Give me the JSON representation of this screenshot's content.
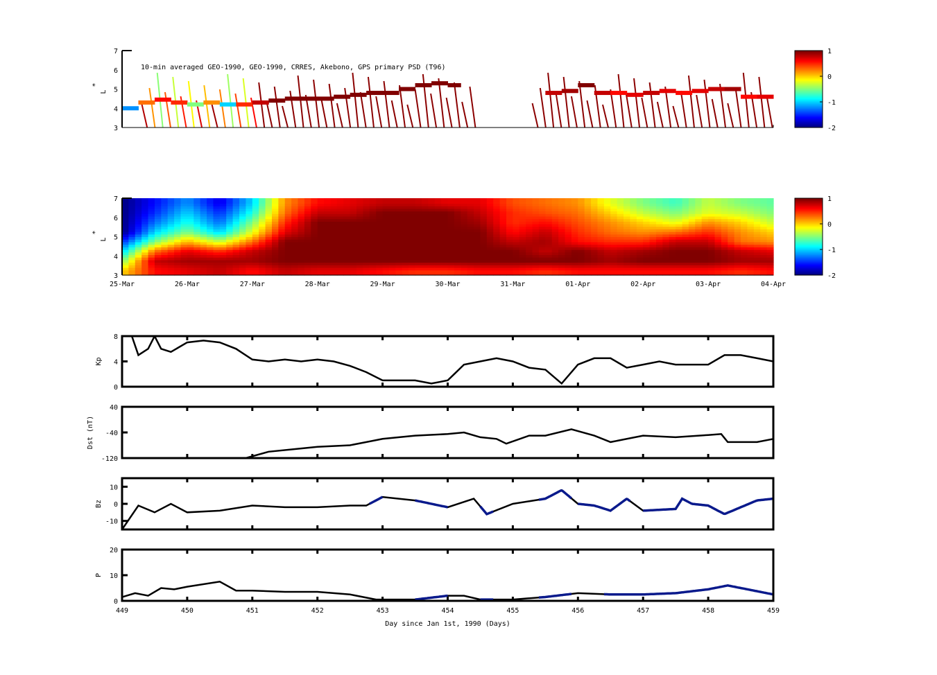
{
  "chart_data": [
    {
      "id": "psd-obs",
      "type": "heatmap",
      "title": "10-min averaged GEO-1990, GEO-1990, CRRES, Akebono, GPS  primary PSD (T96)",
      "ylabel": "L*",
      "ylabel_main": "L",
      "ylabel_star": "*",
      "ylim": [
        3,
        7
      ],
      "yticks": [
        "3",
        "4",
        "5",
        "6",
        "7"
      ],
      "xlim": [
        449,
        459
      ],
      "track": {
        "day": [
          449,
          449.25,
          449.5,
          449.75,
          450,
          450.25,
          450.5,
          450.75,
          451,
          451.25,
          451.5,
          451.75,
          452,
          452.25,
          452.5,
          452.75,
          453,
          453.25,
          453.5,
          453.75,
          454,
          454.2,
          455.5,
          455.75,
          456,
          456.25,
          456.5,
          456.75,
          457,
          457.25,
          457.5,
          457.75,
          458,
          458.25,
          458.5,
          458.75,
          459
        ],
        "L": [
          4.0,
          4.3,
          4.45,
          4.3,
          4.2,
          4.3,
          4.2,
          4.2,
          4.3,
          4.4,
          4.5,
          4.5,
          4.5,
          4.6,
          4.7,
          4.8,
          4.8,
          5.0,
          5.2,
          5.3,
          5.2,
          5.2,
          4.8,
          4.9,
          5.2,
          4.8,
          4.8,
          4.7,
          4.8,
          4.9,
          4.8,
          4.9,
          5.0,
          5.0,
          4.6,
          4.6,
          4.7
        ],
        "value": [
          -1.2,
          0.3,
          0.6,
          0.5,
          -0.5,
          0.2,
          -1.0,
          0.5,
          0.8,
          1,
          1,
          1,
          1,
          1,
          1,
          1,
          1,
          1,
          1,
          1,
          1,
          1,
          0.8,
          0.9,
          1,
          0.8,
          0.6,
          0.7,
          0.8,
          0.7,
          0.6,
          0.7,
          0.8,
          0.9,
          0.6,
          0.7,
          0.6
        ]
      },
      "colorbar": {
        "ticks": [
          "1",
          "0",
          "-1",
          "-2"
        ],
        "range": [
          -2,
          1
        ]
      }
    },
    {
      "id": "psd-reanalysis",
      "type": "heatmap",
      "ylabel": "L*",
      "ylabel_main": "L",
      "ylabel_star": "*",
      "ylim": [
        3,
        7
      ],
      "yticks": [
        "3",
        "4",
        "5",
        "6",
        "7"
      ],
      "x_days": [
        449,
        449.5,
        450,
        450.5,
        451,
        451.5,
        452,
        452.5,
        453,
        453.5,
        454,
        454.5,
        455,
        455.5,
        456,
        456.5,
        457,
        457.5,
        458,
        458.5,
        459
      ],
      "L_levels": [
        3.25,
        3.75,
        4.25,
        4.75,
        5.25,
        5.75,
        6.25,
        6.75
      ],
      "values": [
        [
          0,
          0.6,
          0.7,
          0.8,
          0.6,
          0.8,
          0.7,
          0.7,
          0.6,
          0.5,
          0.5,
          0.6,
          0.6,
          0.5,
          0.6,
          0.6,
          0.6,
          0.6,
          0.6,
          0.5,
          0.6
        ],
        [
          -0.5,
          0.8,
          0.9,
          0.9,
          0.9,
          1,
          1,
          1,
          1,
          1,
          1,
          1,
          1,
          1,
          1,
          0.9,
          1,
          1,
          1,
          0.9,
          0.9
        ],
        [
          -1,
          0.3,
          0.7,
          0.5,
          0.8,
          1,
          1,
          1,
          1,
          1,
          1,
          1,
          1,
          0.8,
          1,
          0.8,
          0.9,
          1,
          1,
          0.8,
          0.7
        ],
        [
          -1.5,
          -0.5,
          0.1,
          -0.3,
          0.3,
          1,
          1,
          1,
          1,
          1,
          1,
          1,
          0.8,
          0.9,
          0.6,
          0.5,
          0.5,
          0.8,
          0.8,
          0.3,
          0.2
        ],
        [
          -2,
          -1,
          -0.5,
          -1,
          -0.2,
          0.7,
          1,
          1,
          1,
          1,
          1,
          1,
          0.6,
          0.8,
          0.5,
          0.3,
          0.2,
          0.3,
          0.5,
          0.2,
          0
        ],
        [
          -2,
          -1.3,
          -0.8,
          -1.3,
          -0.5,
          0.5,
          1,
          1,
          1,
          1,
          1,
          0.9,
          0.5,
          0.6,
          0.4,
          0.2,
          0,
          -0.2,
          0.2,
          0,
          -0.3
        ],
        [
          -2,
          -1.5,
          -1,
          -1.5,
          -0.8,
          0.3,
          0.8,
          0.8,
          1,
          1,
          1,
          0.8,
          0.5,
          0.4,
          0.3,
          0,
          -0.3,
          -0.5,
          -0.2,
          -0.3,
          -0.5
        ],
        [
          -2,
          -1.6,
          -1.2,
          -1.7,
          -1,
          0.2,
          0.6,
          0.7,
          0.8,
          0.8,
          0.7,
          0.7,
          0.4,
          0.3,
          0.2,
          -0.2,
          -0.5,
          -0.7,
          -0.3,
          -0.5,
          -0.6
        ]
      ],
      "xticklabels": [
        "25-Mar",
        "26-Mar",
        "27-Mar",
        "28-Mar",
        "29-Mar",
        "30-Mar",
        "31-Mar",
        "01-Apr",
        "02-Apr",
        "03-Apr",
        "04-Apr"
      ],
      "colorbar": {
        "ticks": [
          "1",
          "0",
          "-1",
          "-2"
        ],
        "range": [
          -2,
          1
        ]
      }
    },
    {
      "id": "kp",
      "type": "line",
      "ylabel": "Kp",
      "ylim": [
        0,
        8
      ],
      "yticks": [
        "0",
        "4",
        "8"
      ],
      "x": [
        449,
        449.15,
        449.25,
        449.4,
        449.5,
        449.6,
        449.75,
        450,
        450.25,
        450.5,
        450.75,
        451,
        451.25,
        451.5,
        451.75,
        452,
        452.25,
        452.5,
        452.75,
        453,
        453.25,
        453.5,
        453.75,
        454,
        454.1,
        454.25,
        454.5,
        454.75,
        455,
        455.25,
        455.5,
        455.75,
        456,
        456.25,
        456.5,
        456.75,
        457,
        457.25,
        457.5,
        457.75,
        458,
        458.25,
        458.5,
        458.75,
        459
      ],
      "y": [
        8,
        8,
        5,
        6,
        8,
        6,
        5.5,
        7,
        7.3,
        7,
        6,
        4.3,
        4,
        4.3,
        4,
        4.3,
        4,
        3.3,
        2.3,
        1,
        1,
        1,
        0.5,
        1,
        2,
        3.5,
        4,
        4.5,
        4,
        3,
        2.7,
        0.5,
        3.5,
        4.5,
        4.5,
        3,
        3.5,
        4,
        3.5,
        3.5,
        3.5,
        5,
        5,
        4.5,
        4
      ]
    },
    {
      "id": "dst",
      "type": "line",
      "ylabel": "Dst (nT)",
      "ylim": [
        -120,
        40
      ],
      "yticks": [
        "-120",
        "-40",
        "40"
      ],
      "x": [
        450.9,
        451.25,
        451.75,
        452,
        452.5,
        453,
        453.5,
        454,
        454.25,
        454.5,
        454.75,
        454.9,
        455.25,
        455.5,
        455.9,
        456.25,
        456.5,
        457,
        457.5,
        458,
        458.2,
        458.3,
        458.75,
        459
      ],
      "y": [
        -120,
        -100,
        -90,
        -85,
        -80,
        -60,
        -50,
        -45,
        -40,
        -55,
        -60,
        -75,
        -50,
        -50,
        -30,
        -50,
        -70,
        -50,
        -55,
        -48,
        -45,
        -70,
        -70,
        -60
      ]
    },
    {
      "id": "bz",
      "type": "line",
      "ylabel": "Bz",
      "ylim": [
        -15,
        15
      ],
      "yticks": [
        "-10",
        "0",
        "10"
      ],
      "x": [
        449,
        449.25,
        449.5,
        449.75,
        450,
        450.5,
        451,
        451.5,
        452,
        452.5,
        452.75,
        453,
        453.5,
        453.75,
        454,
        454.4,
        454.6,
        455,
        455.5,
        455.75,
        456,
        456.25,
        456.5,
        456.75,
        457,
        457.5,
        457.6,
        457.75,
        458,
        458.25,
        458.5,
        458.75,
        459
      ],
      "y": [
        -15,
        -1,
        -5,
        0,
        -5,
        -4,
        -1,
        -2,
        -2,
        -1,
        -1,
        4,
        2,
        0,
        -2,
        3,
        -6,
        0,
        3,
        8,
        0,
        -1,
        -4,
        3,
        -4,
        -3,
        3,
        0,
        -1,
        -6,
        -2,
        2,
        3
      ],
      "highlight_ranges": [
        [
          452.8,
          453.0
        ],
        [
          453.5,
          454.0
        ],
        [
          454.5,
          454.7
        ],
        [
          455.4,
          455.9
        ],
        [
          456.0,
          456.8
        ],
        [
          457.0,
          459.0
        ]
      ]
    },
    {
      "id": "p",
      "type": "line",
      "ylabel": "P",
      "ylim": [
        0,
        20
      ],
      "yticks": [
        "0",
        "10",
        "20"
      ],
      "x": [
        449,
        449.2,
        449.4,
        449.6,
        449.8,
        450,
        450.5,
        450.75,
        451,
        451.5,
        452,
        452.5,
        452.9,
        453.5,
        454,
        454.25,
        454.5,
        455,
        455.5,
        456,
        456.5,
        457,
        457.5,
        458,
        458.3,
        458.5,
        459
      ],
      "y": [
        1.5,
        3,
        2,
        5,
        4.5,
        5.5,
        7.5,
        4,
        4,
        3.5,
        3.5,
        2.5,
        0.5,
        0.5,
        2,
        2,
        0.5,
        0.5,
        1.5,
        3,
        2.5,
        2.5,
        3,
        4.5,
        6,
        5,
        2.5
      ],
      "highlight_ranges": [
        [
          453.5,
          454.0
        ],
        [
          454.5,
          454.7
        ],
        [
          455.4,
          455.9
        ],
        [
          456.4,
          459.0
        ]
      ],
      "xticklabels": [
        "449",
        "450",
        "451",
        "452",
        "453",
        "454",
        "455",
        "456",
        "457",
        "458",
        "459"
      ],
      "xlabel": "Day since Jan 1st, 1990 (Days)"
    }
  ],
  "colors": {
    "line": "#000000",
    "highlight": "#0a1a8c"
  }
}
